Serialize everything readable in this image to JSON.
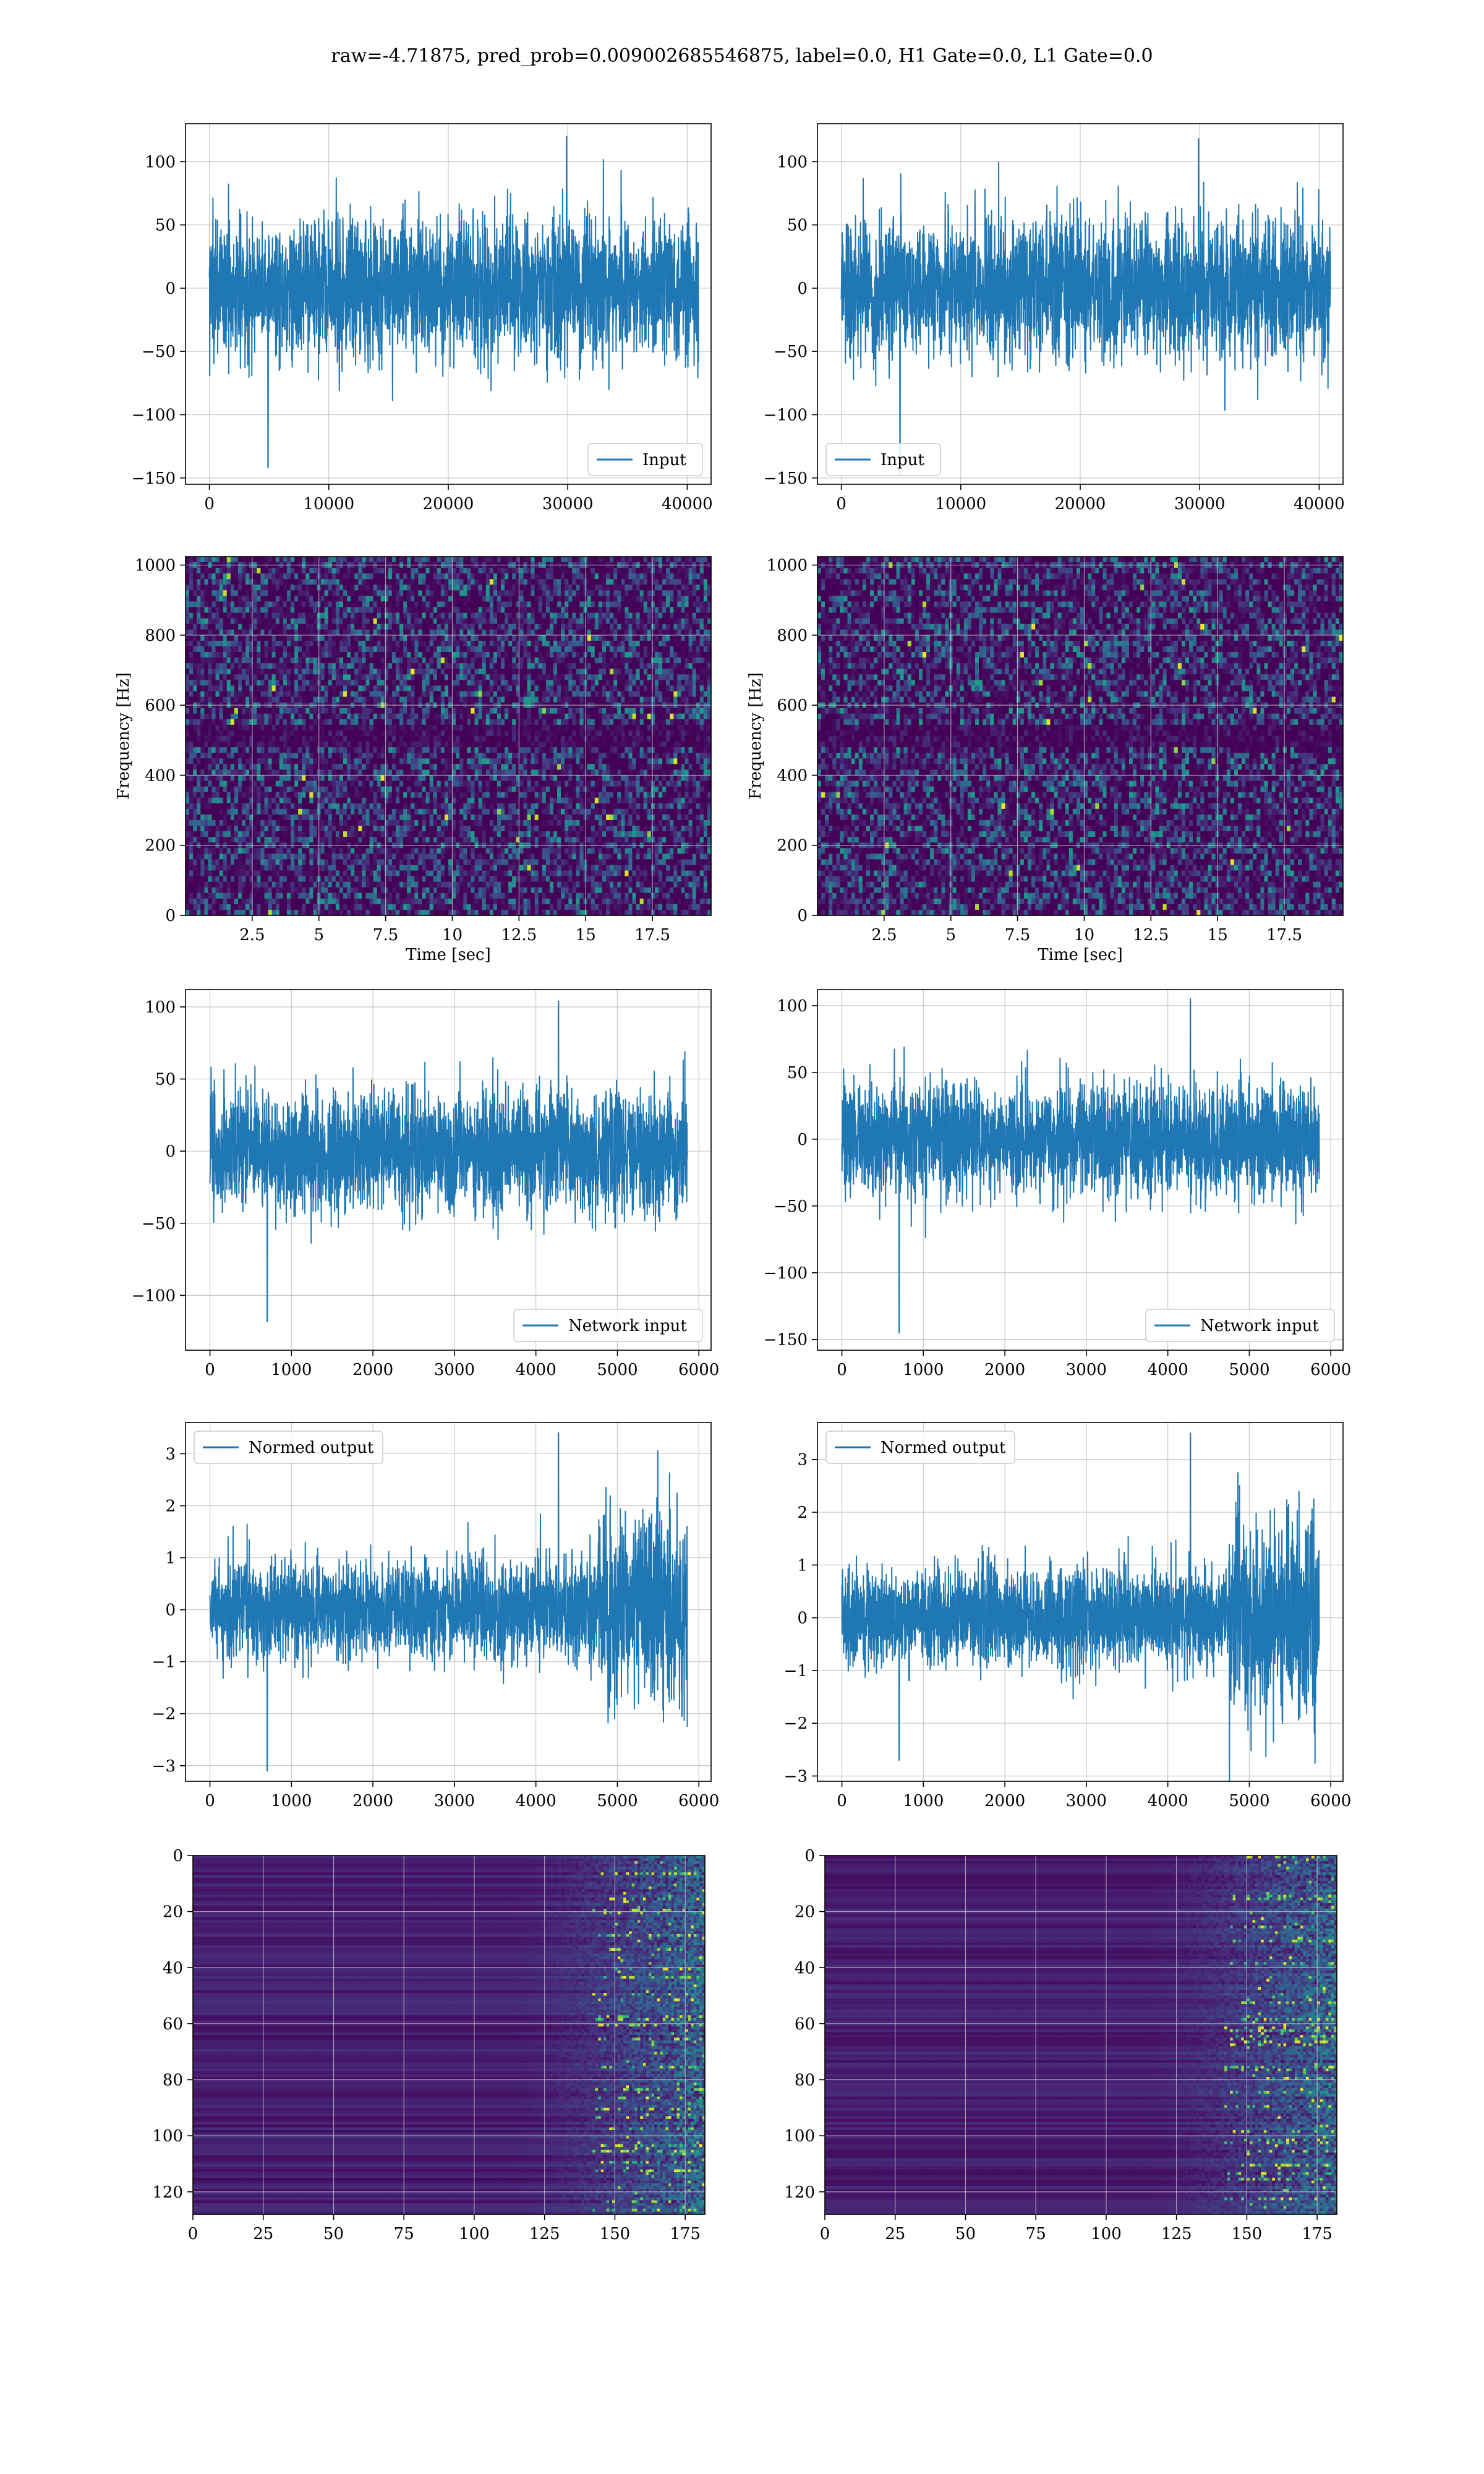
{
  "figure": {
    "title": "raw=-4.71875, pred_prob=0.009002685546875, label=0.0, H1 Gate=0.0, L1 Gate=0.0"
  },
  "colors": {
    "line": "#1f77b4",
    "grid": "#b0b0b0",
    "heat_low": "#440154",
    "heat_mid": "#21918c",
    "heat_high": "#fde725"
  },
  "chart_data": [
    {
      "type": "line",
      "id": "input-h1",
      "column": "left",
      "row": 1,
      "legend": "Input",
      "legend_loc": "lower right",
      "xlim": [
        -2000,
        42000
      ],
      "ylim": [
        -155,
        130
      ],
      "xticks": [
        0,
        10000,
        20000,
        30000,
        40000
      ],
      "yticks": [
        -150,
        -100,
        -50,
        0,
        50,
        100
      ],
      "n_points": 40960,
      "band": [
        -60,
        60
      ],
      "peaks": [
        -142,
        120
      ],
      "xlabel": "",
      "ylabel": ""
    },
    {
      "type": "line",
      "id": "input-l1",
      "column": "right",
      "row": 1,
      "legend": "Input",
      "legend_loc": "lower left",
      "xlim": [
        -2000,
        42000
      ],
      "ylim": [
        -155,
        130
      ],
      "xticks": [
        0,
        10000,
        20000,
        30000,
        40000
      ],
      "yticks": [
        -150,
        -100,
        -50,
        0,
        50,
        100
      ],
      "n_points": 40960,
      "band": [
        -60,
        60
      ],
      "peaks": [
        -148,
        118
      ],
      "xlabel": "",
      "ylabel": ""
    },
    {
      "type": "heatmap",
      "id": "spectrogram-h1",
      "column": "left",
      "row": 2,
      "xlim": [
        0,
        19.7
      ],
      "ylim": [
        0,
        1024
      ],
      "xticks": [
        2.5,
        5.0,
        7.5,
        10.0,
        12.5,
        15.0,
        17.5
      ],
      "yticks": [
        0,
        200,
        400,
        600,
        800,
        1000
      ],
      "xlabel": "Time [sec]",
      "ylabel": "Frequency [Hz]"
    },
    {
      "type": "heatmap",
      "id": "spectrogram-l1",
      "column": "right",
      "row": 2,
      "xlim": [
        0,
        19.7
      ],
      "ylim": [
        0,
        1024
      ],
      "xticks": [
        2.5,
        5.0,
        7.5,
        10.0,
        12.5,
        15.0,
        17.5
      ],
      "yticks": [
        0,
        200,
        400,
        600,
        800,
        1000
      ],
      "xlabel": "Time [sec]",
      "ylabel": "Frequency [Hz]"
    },
    {
      "type": "line",
      "id": "network-input-h1",
      "column": "left",
      "row": 3,
      "legend": "Network input",
      "legend_loc": "lower right",
      "xlim": [
        -300,
        6150
      ],
      "ylim": [
        -138,
        112
      ],
      "xticks": [
        0,
        1000,
        2000,
        3000,
        4000,
        5000,
        6000
      ],
      "yticks": [
        -100,
        -50,
        0,
        50,
        100
      ],
      "n_points": 5860,
      "band": [
        -45,
        45
      ],
      "peaks": [
        -118,
        104
      ],
      "xlabel": "",
      "ylabel": ""
    },
    {
      "type": "line",
      "id": "network-input-l1",
      "column": "right",
      "row": 3,
      "legend": "Network input",
      "legend_loc": "lower right",
      "xlim": [
        -300,
        6150
      ],
      "ylim": [
        -158,
        112
      ],
      "xticks": [
        0,
        1000,
        2000,
        3000,
        4000,
        5000,
        6000
      ],
      "yticks": [
        -150,
        -100,
        -50,
        0,
        50,
        100
      ],
      "n_points": 5860,
      "band": [
        -45,
        45
      ],
      "peaks": [
        -145,
        105
      ],
      "xlabel": "",
      "ylabel": ""
    },
    {
      "type": "line",
      "id": "normed-output-h1",
      "column": "left",
      "row": 4,
      "legend": "Normed output",
      "legend_loc": "upper left",
      "xlim": [
        -300,
        6150
      ],
      "ylim": [
        -3.3,
        3.6
      ],
      "xticks": [
        0,
        1000,
        2000,
        3000,
        4000,
        5000,
        6000
      ],
      "yticks": [
        -3,
        -2,
        -1,
        0,
        1,
        2,
        3
      ],
      "n_points": 5860,
      "band": [
        -1,
        1
      ],
      "burst_start": 4750,
      "peaks": [
        -3.1,
        3.4
      ],
      "xlabel": "",
      "ylabel": ""
    },
    {
      "type": "line",
      "id": "normed-output-l1",
      "column": "right",
      "row": 4,
      "legend": "Normed output",
      "legend_loc": "upper left",
      "xlim": [
        -300,
        6150
      ],
      "ylim": [
        -3.1,
        3.7
      ],
      "xticks": [
        0,
        1000,
        2000,
        3000,
        4000,
        5000,
        6000
      ],
      "yticks": [
        -3,
        -2,
        -1,
        0,
        1,
        2,
        3
      ],
      "n_points": 5860,
      "band": [
        -1,
        1
      ],
      "burst_start": 4750,
      "peaks": [
        -2.7,
        3.5
      ],
      "xlabel": "",
      "ylabel": ""
    },
    {
      "type": "heatmap",
      "id": "feature-map-h1",
      "column": "left",
      "row": 5,
      "xlim": [
        0,
        182
      ],
      "ylim": [
        128,
        0
      ],
      "xticks": [
        0,
        25,
        50,
        75,
        100,
        125,
        150,
        175
      ],
      "yticks": [
        0,
        20,
        40,
        60,
        80,
        100,
        120
      ],
      "xlabel": "",
      "ylabel": ""
    },
    {
      "type": "heatmap",
      "id": "feature-map-l1",
      "column": "right",
      "row": 5,
      "xlim": [
        0,
        182
      ],
      "ylim": [
        128,
        0
      ],
      "xticks": [
        0,
        25,
        50,
        75,
        100,
        125,
        150,
        175
      ],
      "yticks": [
        0,
        20,
        40,
        60,
        80,
        100,
        120
      ],
      "xlabel": "",
      "ylabel": ""
    }
  ]
}
